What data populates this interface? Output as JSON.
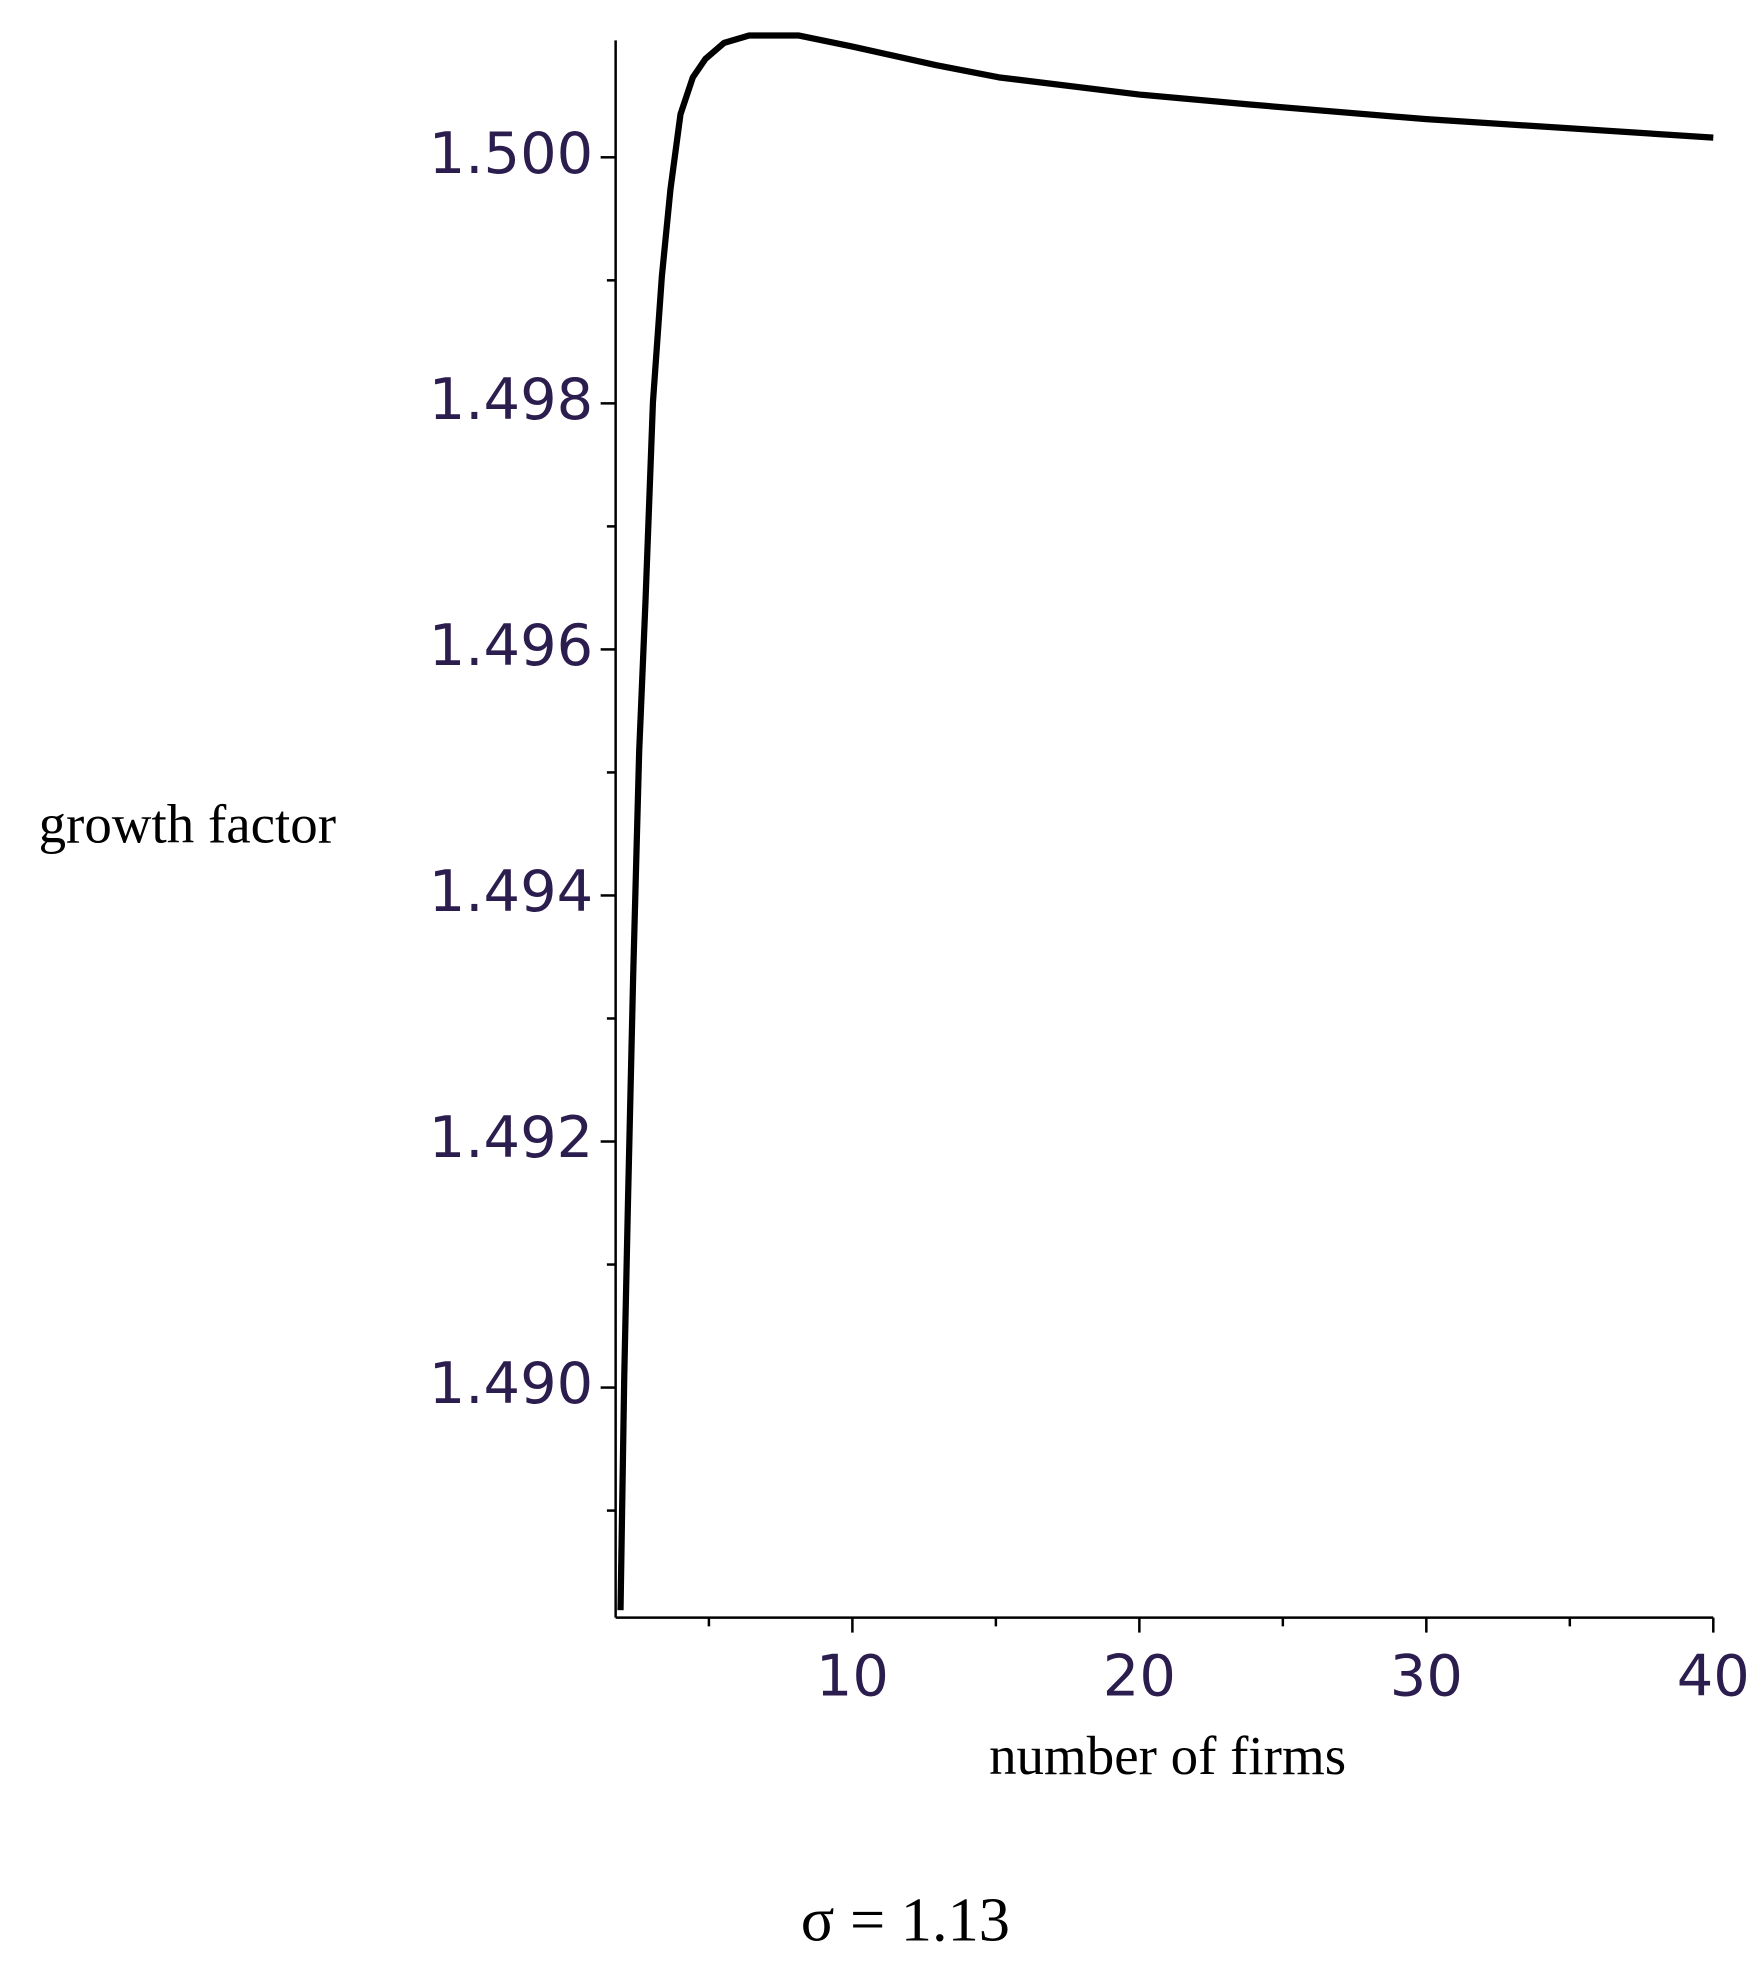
{
  "chart_data": {
    "type": "line",
    "x_label": "number of firms",
    "y_label": "growth factor",
    "caption": "σ = 1.13",
    "x": [
      1.92,
      2.05,
      2.18,
      2.36,
      2.57,
      2.79,
      3.05,
      3.36,
      3.66,
      4.01,
      4.44,
      4.88,
      5.53,
      6.4,
      8.14,
      10,
      12.9,
      15.1,
      20,
      23.8,
      30,
      34.7,
      40
    ],
    "series": [
      {
        "color": "#000000",
        "values": [
          1.48819,
          1.49009,
          1.49151,
          1.49334,
          1.49517,
          1.49639,
          1.49801,
          1.49903,
          1.49974,
          1.50035,
          1.50065,
          1.5008,
          1.50093,
          1.50099,
          1.50099,
          1.5009,
          1.50075,
          1.50065,
          1.50051,
          1.50043,
          1.50031,
          1.50024,
          1.50016
        ]
      }
    ],
    "xlim": [
      1.75,
      40
    ],
    "ylim": [
      1.48813,
      1.50095
    ],
    "xticks": [
      10,
      20,
      30,
      40
    ],
    "x_minor_ticks": [
      5,
      15,
      25,
      35
    ],
    "yticks": [
      {
        "value": 1.49,
        "label": "1.490"
      },
      1.492,
      1.494,
      1.496,
      1.498,
      {
        "value": 1.5,
        "label": "1.500"
      }
    ],
    "y_minor_ticks": [
      1.489,
      1.491,
      1.493,
      1.495,
      1.497,
      1.499
    ],
    "grid": false
  }
}
